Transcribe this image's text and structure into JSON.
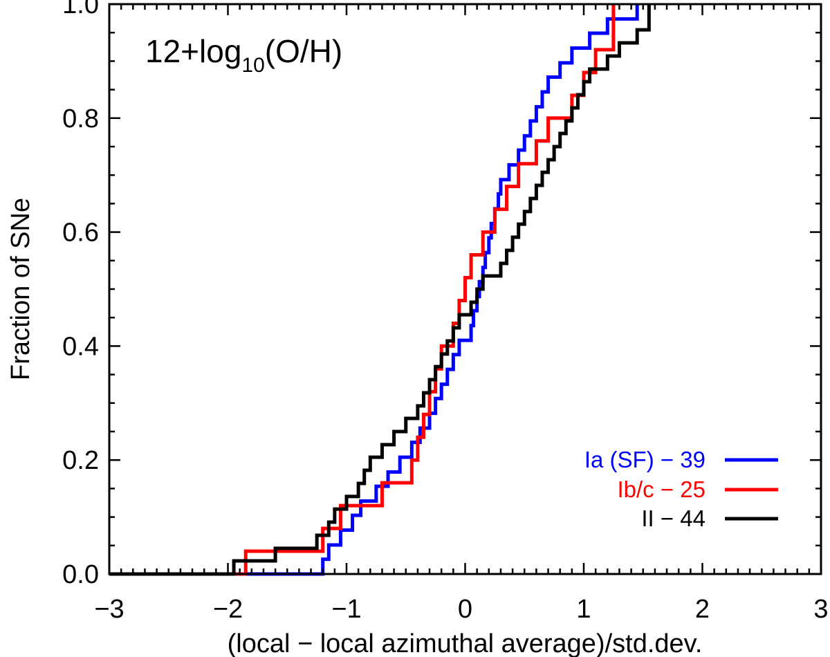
{
  "chart_data": {
    "type": "line",
    "subtype": "step-cdf",
    "annotation": {
      "prefix": "12+log",
      "subscript": "10",
      "suffix": "(O/H)"
    },
    "xlabel": "(local − local azimuthal average)/std.dev.",
    "ylabel": "Fraction of SNe",
    "xlim": [
      -3,
      3
    ],
    "ylim": [
      0,
      1
    ],
    "x_ticks": [
      -3,
      -2,
      -1,
      0,
      1,
      2,
      3
    ],
    "x_tick_labels": [
      "−3",
      "−2",
      "−1",
      "0",
      "1",
      "2",
      "3"
    ],
    "y_ticks": [
      0,
      0.2,
      0.4,
      0.6,
      0.8,
      1.0
    ],
    "y_tick_labels": [
      "0.0",
      "0.2",
      "0.4",
      "0.6",
      "0.8",
      "1.0"
    ],
    "grid": false,
    "legend_position": "bottom-right",
    "series": [
      {
        "name": "Ia (SF) − 39",
        "color": "#0000ff",
        "x": [
          -1.45,
          -1.2,
          -1.15,
          -1.05,
          -0.95,
          -0.88,
          -0.75,
          -0.65,
          -0.55,
          -0.45,
          -0.38,
          -0.3,
          -0.25,
          -0.2,
          -0.15,
          -0.1,
          -0.05,
          0.05,
          0.07,
          0.1,
          0.12,
          0.15,
          0.17,
          0.2,
          0.22,
          0.25,
          0.28,
          0.3,
          0.37,
          0.45,
          0.5,
          0.55,
          0.6,
          0.65,
          0.7,
          0.8,
          0.9,
          1.05,
          1.2,
          1.45
        ],
        "y": [
          0,
          0.026,
          0.051,
          0.077,
          0.103,
          0.128,
          0.154,
          0.179,
          0.205,
          0.231,
          0.256,
          0.282,
          0.308,
          0.333,
          0.359,
          0.385,
          0.41,
          0.436,
          0.462,
          0.487,
          0.513,
          0.538,
          0.564,
          0.59,
          0.615,
          0.641,
          0.667,
          0.692,
          0.718,
          0.744,
          0.769,
          0.795,
          0.82,
          0.846,
          0.872,
          0.897,
          0.923,
          0.949,
          0.974,
          1.0
        ]
      },
      {
        "name": "Ib/c − 25",
        "color": "#ff0000",
        "x": [
          -1.9,
          -1.85,
          -1.2,
          -1.05,
          -0.7,
          -0.45,
          -0.4,
          -0.35,
          -0.3,
          -0.25,
          -0.2,
          -0.1,
          -0.05,
          0,
          0.05,
          0.15,
          0.25,
          0.35,
          0.45,
          0.6,
          0.7,
          0.9,
          1.0,
          1.1,
          1.25
        ],
        "y": [
          0,
          0.04,
          0.08,
          0.12,
          0.16,
          0.2,
          0.24,
          0.28,
          0.32,
          0.36,
          0.4,
          0.44,
          0.48,
          0.52,
          0.56,
          0.6,
          0.64,
          0.68,
          0.72,
          0.76,
          0.8,
          0.84,
          0.88,
          0.92,
          1.0
        ]
      },
      {
        "name": "II − 44",
        "color": "#000000",
        "x": [
          -2.0,
          -1.95,
          -1.6,
          -1.25,
          -1.15,
          -1.1,
          -1.0,
          -0.9,
          -0.85,
          -0.8,
          -0.7,
          -0.6,
          -0.5,
          -0.4,
          -0.35,
          -0.3,
          -0.25,
          -0.2,
          -0.15,
          -0.1,
          -0.05,
          0.05,
          0.1,
          0.15,
          0.3,
          0.35,
          0.4,
          0.45,
          0.5,
          0.55,
          0.6,
          0.65,
          0.7,
          0.75,
          0.8,
          0.85,
          0.9,
          0.95,
          1.0,
          1.05,
          1.2,
          1.3,
          1.45,
          1.55
        ],
        "y": [
          0,
          0.023,
          0.045,
          0.068,
          0.091,
          0.114,
          0.136,
          0.159,
          0.182,
          0.205,
          0.227,
          0.25,
          0.273,
          0.295,
          0.318,
          0.341,
          0.364,
          0.386,
          0.409,
          0.432,
          0.455,
          0.477,
          0.5,
          0.523,
          0.545,
          0.568,
          0.591,
          0.614,
          0.636,
          0.659,
          0.682,
          0.705,
          0.727,
          0.75,
          0.773,
          0.795,
          0.818,
          0.841,
          0.864,
          0.886,
          0.909,
          0.932,
          0.955,
          1.0
        ]
      }
    ]
  }
}
